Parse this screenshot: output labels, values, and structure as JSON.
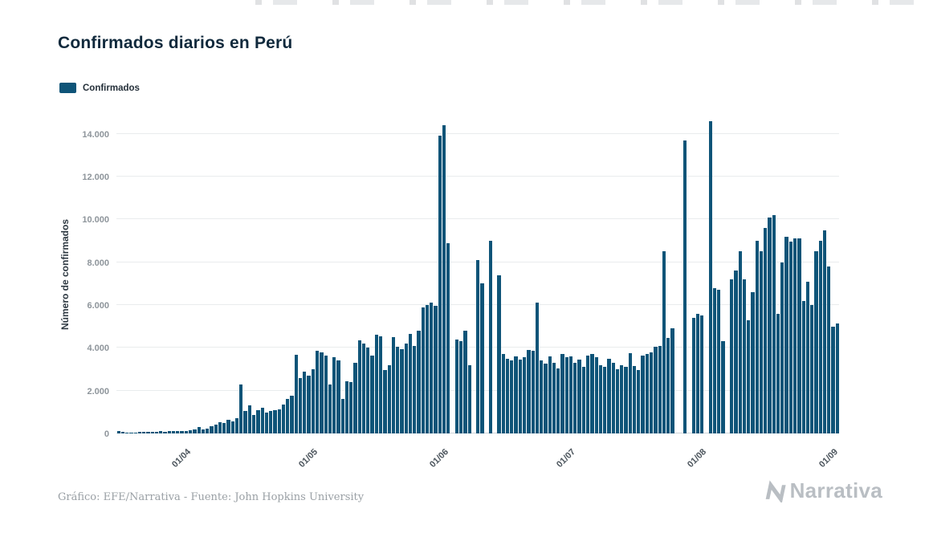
{
  "page": {
    "title": "Confirmados diarios en Perú",
    "footer_credit": "Gráfico: EFE/Narrativa - Fuente: John Hopkins University",
    "brand_name": "Narrativa"
  },
  "legend": {
    "label": "Confirmados"
  },
  "chart_data": {
    "type": "bar",
    "title": "Confirmados diarios en Perú",
    "xlabel": "",
    "ylabel": "Número de confirmados",
    "ylim": [
      0,
      15000
    ],
    "grid": true,
    "legend_position": "top-left",
    "bar_color": "#0e5478",
    "background": "#ffffff",
    "y_ticks": [
      "0",
      "2.000",
      "4.000",
      "6.000",
      "8.000",
      "10.000",
      "12.000",
      "14.000"
    ],
    "y_tick_values": [
      0,
      2000,
      4000,
      6000,
      8000,
      10000,
      12000,
      14000
    ],
    "x_ticks": [
      "01/04",
      "01/05",
      "01/06",
      "01/07",
      "01/08",
      "01/09"
    ],
    "x_tick_indices": [
      16,
      46,
      77,
      107,
      138,
      169
    ],
    "x_unit": "day",
    "x_start": "2020-03-16",
    "x_end": "2020-09-02",
    "series": [
      {
        "name": "Confirmados",
        "values": [
          120,
          70,
          50,
          40,
          55,
          65,
          60,
          75,
          70,
          85,
          95,
          80,
          105,
          115,
          100,
          110,
          130,
          150,
          185,
          290,
          205,
          240,
          330,
          420,
          530,
          470,
          620,
          560,
          700,
          2270,
          1060,
          1320,
          870,
          1100,
          1210,
          960,
          1050,
          1080,
          1120,
          1350,
          1600,
          1750,
          3690,
          2600,
          2900,
          2700,
          3000,
          3850,
          3800,
          3650,
          2300,
          3550,
          3400,
          1600,
          2450,
          2400,
          3300,
          4350,
          4200,
          4000,
          3650,
          4600,
          4550,
          2950,
          3200,
          4500,
          4050,
          3950,
          4200,
          4650,
          4100,
          4800,
          5900,
          6000,
          6100,
          5950,
          13900,
          14400,
          8900,
          0,
          4400,
          4300,
          4800,
          3200,
          0,
          8100,
          7000,
          0,
          9000,
          0,
          7400,
          3700,
          3500,
          3400,
          3600,
          3450,
          3550,
          3900,
          3850,
          6100,
          3400,
          3250,
          3600,
          3300,
          3050,
          3700,
          3550,
          3600,
          3300,
          3450,
          3100,
          3650,
          3700,
          3550,
          3200,
          3100,
          3500,
          3300,
          3000,
          3200,
          3100,
          3750,
          3150,
          2950,
          3650,
          3700,
          3800,
          4050,
          4100,
          8500,
          4450,
          4900,
          0,
          0,
          13700,
          0,
          5400,
          5600,
          5500,
          0,
          14600,
          6800,
          6700,
          4300,
          0,
          7200,
          7600,
          8500,
          7200,
          5300,
          6600,
          9000,
          8500,
          9600,
          10100,
          10200,
          5600,
          8000,
          9200,
          8950,
          9100,
          9100,
          6200,
          7100,
          6000,
          8500,
          9000,
          9500,
          7800,
          5000,
          5150
        ]
      }
    ]
  }
}
